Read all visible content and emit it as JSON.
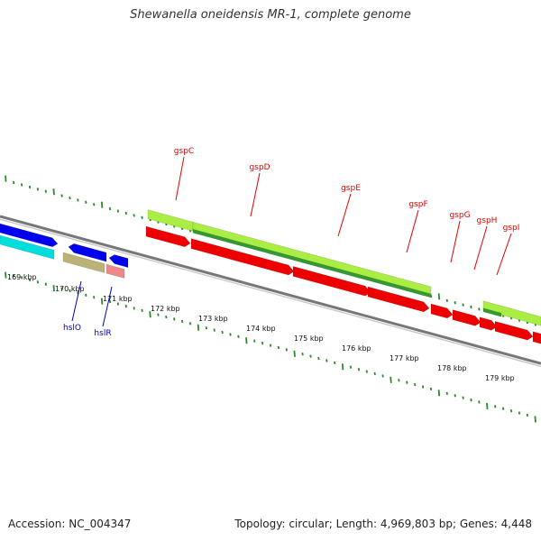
{
  "title": "Shewanella oneidensis MR-1, complete genome",
  "footer": {
    "accession": "Accession: NC_004347",
    "summary": "Topology: circular; Length: 4,969,803 bp; Genes: 4,448"
  },
  "colors": {
    "backbone": "#8a8a8a",
    "tick": "#2a8a2a",
    "cds_forward": "#0000ee",
    "cds_reverse": "#ee0000",
    "rrna_like": "#00dddd",
    "gene_bright": "#aaee44",
    "gene_dark": "#339933",
    "gene_khaki": "#bbb277",
    "gene_salmon": "#ee8888",
    "label_red": "#dd0000",
    "label_blue": "#0000bb"
  },
  "scale_kbp": [
    169,
    170,
    171,
    172,
    173,
    174,
    175,
    176,
    177,
    178,
    179
  ],
  "scale_unit": "kbp",
  "gene_labels": {
    "red": [
      "gspC",
      "gspD",
      "gspE",
      "gspF",
      "gspG",
      "gspH",
      "gspI"
    ],
    "blue": [
      "hslO",
      "hslR"
    ]
  }
}
